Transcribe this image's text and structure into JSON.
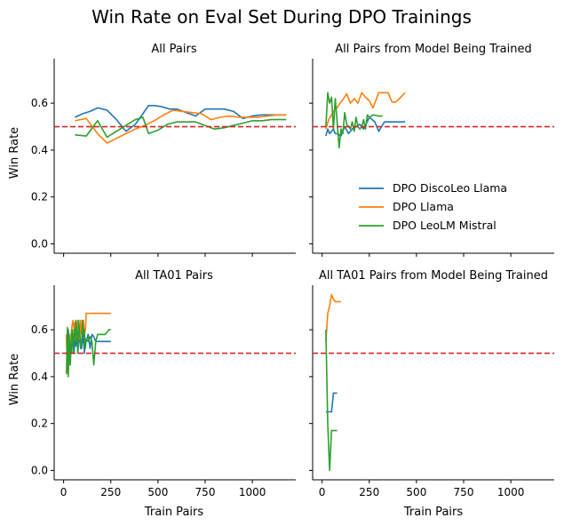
{
  "figure": {
    "title": "Win Rate on Eval Set During DPO Trainings",
    "xlabel": "Train Pairs",
    "ylabel": "Win Rate"
  },
  "legend": {
    "placement": "center-right of top-right panel",
    "entries": [
      {
        "name": "DPO DiscoLeo Llama",
        "color": "#1f77b4"
      },
      {
        "name": "DPO Llama",
        "color": "#ff7f0e"
      },
      {
        "name": "DPO LeoLM Mistral",
        "color": "#2ca02c"
      }
    ]
  },
  "chart_data": [
    {
      "type": "line",
      "title": "All Pairs",
      "xlim": [
        -50,
        1230
      ],
      "ylim": [
        -0.04,
        0.79
      ],
      "xticks": [
        0,
        250,
        500,
        750,
        1000
      ],
      "yticks": [
        0.0,
        0.2,
        0.4,
        0.6
      ],
      "reference_line": {
        "y": 0.5,
        "color": "#d62728",
        "style": "dashed"
      },
      "series": [
        {
          "name": "DPO DiscoLeo Llama",
          "color": "#1f77b4",
          "x": [
            60,
            100,
            140,
            180,
            230,
            280,
            330,
            380,
            420,
            450,
            480,
            520,
            560,
            600,
            650,
            700,
            750,
            800,
            850,
            900,
            950,
            1000,
            1050,
            1100,
            1150,
            1180
          ],
          "y": [
            0.54,
            0.555,
            0.565,
            0.58,
            0.57,
            0.53,
            0.48,
            0.51,
            0.555,
            0.59,
            0.59,
            0.585,
            0.575,
            0.575,
            0.56,
            0.545,
            0.575,
            0.575,
            0.575,
            0.565,
            0.535,
            0.545,
            0.55,
            0.55,
            0.55,
            0.55
          ]
        },
        {
          "name": "DPO Llama",
          "color": "#ff7f0e",
          "x": [
            60,
            120,
            180,
            230,
            280,
            330,
            380,
            430,
            480,
            530,
            580,
            630,
            680,
            730,
            780,
            830,
            880,
            930,
            980,
            1030,
            1080,
            1130,
            1180
          ],
          "y": [
            0.525,
            0.535,
            0.47,
            0.43,
            0.45,
            0.47,
            0.49,
            0.505,
            0.525,
            0.55,
            0.57,
            0.565,
            0.56,
            0.555,
            0.53,
            0.54,
            0.545,
            0.54,
            0.54,
            0.54,
            0.545,
            0.55,
            0.55
          ]
        },
        {
          "name": "DPO LeoLM Mistral",
          "color": "#2ca02c",
          "x": [
            60,
            120,
            180,
            230,
            280,
            330,
            380,
            420,
            450,
            500,
            550,
            600,
            650,
            700,
            750,
            800,
            850,
            900,
            950,
            1000,
            1050,
            1100,
            1150,
            1180
          ],
          "y": [
            0.465,
            0.46,
            0.525,
            0.455,
            0.48,
            0.505,
            0.53,
            0.54,
            0.47,
            0.485,
            0.51,
            0.52,
            0.52,
            0.52,
            0.505,
            0.49,
            0.495,
            0.505,
            0.515,
            0.525,
            0.525,
            0.53,
            0.53,
            0.53
          ]
        }
      ]
    },
    {
      "type": "line",
      "title": "All Pairs from Model Being Trained",
      "xlim": [
        -50,
        1230
      ],
      "ylim": [
        -0.04,
        0.79
      ],
      "xticks": [
        0,
        250,
        500,
        750,
        1000
      ],
      "yticks": [
        0.0,
        0.2,
        0.4,
        0.6
      ],
      "reference_line": {
        "y": 0.5,
        "color": "#d62728",
        "style": "dashed"
      },
      "series": [
        {
          "name": "DPO DiscoLeo Llama",
          "color": "#1f77b4",
          "x": [
            20,
            30,
            40,
            50,
            60,
            70,
            80,
            100,
            120,
            140,
            160,
            180,
            200,
            220,
            250,
            280,
            300,
            330,
            360,
            380,
            400,
            420,
            440
          ],
          "y": [
            0.46,
            0.49,
            0.47,
            0.48,
            0.49,
            0.47,
            0.47,
            0.46,
            0.5,
            0.47,
            0.49,
            0.5,
            0.51,
            0.49,
            0.54,
            0.52,
            0.48,
            0.52,
            0.52,
            0.52,
            0.52,
            0.52,
            0.52
          ]
        },
        {
          "name": "DPO Llama",
          "color": "#ff7f0e",
          "x": [
            20,
            35,
            50,
            65,
            80,
            95,
            110,
            130,
            150,
            170,
            190,
            210,
            230,
            250,
            270,
            300,
            330,
            350,
            370,
            390,
            410,
            440
          ],
          "y": [
            0.49,
            0.53,
            0.55,
            0.57,
            0.58,
            0.6,
            0.615,
            0.64,
            0.6,
            0.62,
            0.6,
            0.645,
            0.625,
            0.61,
            0.58,
            0.645,
            0.645,
            0.645,
            0.605,
            0.605,
            0.62,
            0.645
          ]
        },
        {
          "name": "DPO LeoLM Mistral",
          "color": "#2ca02c",
          "x": [
            20,
            30,
            40,
            50,
            60,
            70,
            80,
            90,
            100,
            110,
            120,
            130,
            140,
            150,
            160,
            170,
            180,
            190,
            200,
            210,
            220,
            230,
            240,
            250,
            270,
            300,
            320
          ],
          "y": [
            0.5,
            0.645,
            0.6,
            0.625,
            0.49,
            0.62,
            0.52,
            0.41,
            0.49,
            0.47,
            0.56,
            0.51,
            0.5,
            0.49,
            0.52,
            0.48,
            0.54,
            0.5,
            0.49,
            0.5,
            0.53,
            0.49,
            0.55,
            0.54,
            0.55,
            0.545,
            0.545
          ]
        }
      ]
    },
    {
      "type": "line",
      "title": "All TA01 Pairs",
      "xlim": [
        -50,
        1230
      ],
      "ylim": [
        -0.04,
        0.79
      ],
      "xticks": [
        0,
        250,
        500,
        750,
        1000
      ],
      "yticks": [
        0.0,
        0.2,
        0.4,
        0.6
      ],
      "reference_line": {
        "y": 0.5,
        "color": "#d62728",
        "style": "dashed"
      },
      "series": [
        {
          "name": "DPO DiscoLeo Llama",
          "color": "#1f77b4",
          "x": [
            15,
            20,
            25,
            30,
            35,
            40,
            45,
            50,
            55,
            60,
            65,
            70,
            75,
            80,
            85,
            90,
            95,
            100,
            105,
            110,
            115,
            120,
            130,
            140,
            150,
            160,
            170,
            180,
            190,
            200,
            220,
            250
          ],
          "y": [
            0.58,
            0.45,
            0.6,
            0.48,
            0.55,
            0.5,
            0.58,
            0.52,
            0.5,
            0.56,
            0.53,
            0.6,
            0.5,
            0.55,
            0.58,
            0.52,
            0.52,
            0.55,
            0.58,
            0.5,
            0.56,
            0.55,
            0.58,
            0.52,
            0.58,
            0.57,
            0.55,
            0.55,
            0.55,
            0.55,
            0.55,
            0.55
          ]
        },
        {
          "name": "DPO Llama",
          "color": "#ff7f0e",
          "x": [
            15,
            20,
            25,
            30,
            35,
            40,
            45,
            50,
            55,
            60,
            65,
            70,
            75,
            80,
            85,
            90,
            95,
            100,
            105,
            110,
            115,
            120,
            130,
            140,
            150,
            170,
            200,
            250
          ],
          "y": [
            0.58,
            0.42,
            0.5,
            0.55,
            0.45,
            0.58,
            0.62,
            0.64,
            0.6,
            0.63,
            0.56,
            0.6,
            0.64,
            0.6,
            0.56,
            0.64,
            0.58,
            0.6,
            0.64,
            0.58,
            0.6,
            0.67,
            0.67,
            0.67,
            0.67,
            0.67,
            0.67,
            0.67
          ]
        },
        {
          "name": "DPO LeoLM Mistral",
          "color": "#2ca02c",
          "x": [
            15,
            20,
            25,
            30,
            35,
            40,
            45,
            50,
            55,
            60,
            65,
            70,
            75,
            80,
            85,
            90,
            95,
            100,
            105,
            110,
            115,
            120,
            130,
            140,
            150,
            160,
            170,
            180,
            200,
            220,
            240,
            250
          ],
          "y": [
            0.41,
            0.61,
            0.4,
            0.58,
            0.45,
            0.55,
            0.6,
            0.5,
            0.6,
            0.55,
            0.64,
            0.58,
            0.5,
            0.64,
            0.58,
            0.55,
            0.52,
            0.64,
            0.58,
            0.6,
            0.52,
            0.56,
            0.55,
            0.57,
            0.55,
            0.45,
            0.55,
            0.58,
            0.58,
            0.58,
            0.6,
            0.6
          ]
        }
      ]
    },
    {
      "type": "line",
      "title": "All TA01 Pairs from Model Being Trained",
      "xlim": [
        -50,
        1230
      ],
      "ylim": [
        -0.04,
        0.79
      ],
      "xticks": [
        0,
        250,
        500,
        750,
        1000
      ],
      "yticks": [
        0.0,
        0.2,
        0.4,
        0.6
      ],
      "reference_line": {
        "y": 0.5,
        "color": "#d62728",
        "style": "dashed"
      },
      "series": [
        {
          "name": "DPO DiscoLeo Llama",
          "color": "#1f77b4",
          "x": [
            20,
            30,
            40,
            50,
            60,
            70,
            80
          ],
          "y": [
            0.25,
            0.25,
            0.25,
            0.25,
            0.33,
            0.33,
            0.33
          ]
        },
        {
          "name": "DPO Llama",
          "color": "#ff7f0e",
          "x": [
            20,
            30,
            40,
            50,
            60,
            70,
            80,
            90,
            100
          ],
          "y": [
            0.55,
            0.67,
            0.7,
            0.75,
            0.73,
            0.72,
            0.72,
            0.72,
            0.72
          ]
        },
        {
          "name": "DPO LeoLM Mistral",
          "color": "#2ca02c",
          "x": [
            20,
            30,
            40,
            50,
            60,
            70,
            80
          ],
          "y": [
            0.6,
            0.2,
            0.0,
            0.17,
            0.17,
            0.17,
            0.17
          ]
        }
      ]
    }
  ]
}
